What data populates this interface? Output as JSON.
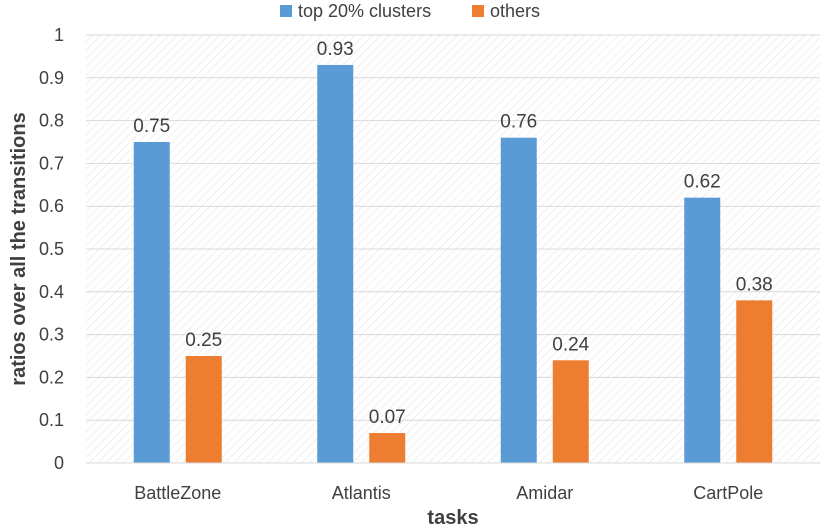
{
  "chart_data": {
    "type": "bar",
    "categories": [
      "BattleZone",
      "Atlantis",
      "Amidar",
      "CartPole"
    ],
    "series": [
      {
        "name": "top 20% clusters",
        "values": [
          0.75,
          0.93,
          0.76,
          0.62
        ],
        "color": "#5B9BD5"
      },
      {
        "name": "others",
        "values": [
          0.25,
          0.07,
          0.24,
          0.38
        ],
        "color": "#ED7D31"
      }
    ],
    "value_labels": [
      [
        "0.75",
        "0.93",
        "0.76",
        "0.62"
      ],
      [
        "0.25",
        "0.07",
        "0.24",
        "0.38"
      ]
    ],
    "title": "",
    "xlabel": "tasks",
    "ylabel": "ratios over all the transitions",
    "ylim": [
      0,
      1
    ],
    "yticks": [
      0,
      0.1,
      0.2,
      0.3,
      0.4,
      0.5,
      0.6,
      0.7,
      0.8,
      0.9,
      1
    ],
    "ytick_labels": [
      "0",
      "0.1",
      "0.2",
      "0.3",
      "0.4",
      "0.5",
      "0.6",
      "0.7",
      "0.8",
      "0.9",
      "1"
    ],
    "grid": true,
    "legend_position": "top-center"
  }
}
